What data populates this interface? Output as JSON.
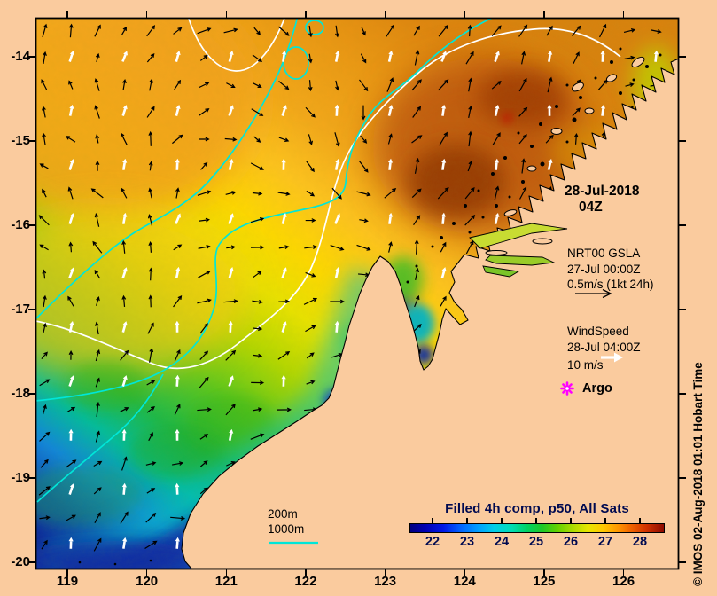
{
  "figure": {
    "bg_color": "#FACB9E",
    "frame_color": "#000000",
    "navy_label_color": "#000A50",
    "contour_white": "#FFFFFF",
    "contour_cyan": "#00E6D8",
    "credit": "© IMOS 02-Aug-2018 01:01 Hobart Time"
  },
  "axes": {
    "x_tick_labels": [
      "119",
      "120",
      "121",
      "122",
      "123",
      "124",
      "125",
      "126"
    ],
    "y_tick_labels": [
      "-14",
      "-15",
      "-16",
      "-17",
      "-18",
      "-19",
      "-20"
    ]
  },
  "annotations": {
    "datetime": {
      "line1": "28-Jul-2018",
      "line2": "04Z"
    },
    "gsla": {
      "line1": "NRT00 GSLA",
      "line2": "27-Jul 00:00Z",
      "line3": "0.5m/s (1kt 24h)"
    },
    "wind": {
      "line1": "WindSpeed",
      "line2": "28-Jul 04:00Z",
      "line3": "10 m/s"
    },
    "argo": {
      "label": "Argo",
      "marker_color": "#FF00FF"
    },
    "depth_legend": {
      "line1": "200m",
      "line2": "1000m",
      "line_color": "#00E6D8"
    }
  },
  "colorbar": {
    "title": "Filled 4h comp, p50, All Sats",
    "tick_labels": [
      "22",
      "23",
      "24",
      "25",
      "26",
      "27",
      "28"
    ],
    "stops": [
      [
        0,
        "#000080"
      ],
      [
        0.06,
        "#0000B4"
      ],
      [
        0.13,
        "#0018E6"
      ],
      [
        0.2,
        "#0064FF"
      ],
      [
        0.27,
        "#00A0FF"
      ],
      [
        0.33,
        "#00CDE8"
      ],
      [
        0.4,
        "#00DCB4"
      ],
      [
        0.46,
        "#00D264"
      ],
      [
        0.52,
        "#1EC828"
      ],
      [
        0.58,
        "#64D200"
      ],
      [
        0.64,
        "#AADC00"
      ],
      [
        0.7,
        "#E6E600"
      ],
      [
        0.76,
        "#FFC800"
      ],
      [
        0.82,
        "#FF9600"
      ],
      [
        0.87,
        "#F06400"
      ],
      [
        0.93,
        "#D23200"
      ],
      [
        1,
        "#8C0A00"
      ]
    ]
  },
  "chart_data": {
    "type": "heatmap",
    "title": "Filled 4h comp, p50, All Sats",
    "colorbar_ticks": [
      22,
      23,
      24,
      25,
      26,
      27,
      28
    ],
    "lon_ticks": [
      119,
      120,
      121,
      122,
      123,
      124,
      125,
      126
    ],
    "lat_ticks": [
      -14,
      -15,
      -16,
      -17,
      -18,
      -19,
      -20
    ],
    "lon_range": [
      118.6,
      126.7
    ],
    "lat_range": [
      -20.1,
      -13.5
    ],
    "overlays": [
      {
        "name": "NRT00 GSLA current vectors",
        "reference": "0.5m/s (1kt 24h)",
        "valid": "27-Jul 00:00Z",
        "color": "black"
      },
      {
        "name": "WindSpeed vectors",
        "reference": "10 m/s",
        "valid": "28-Jul 04:00Z",
        "color": "white"
      },
      {
        "name": "Bathymetry contours",
        "levels": [
          "200m",
          "1000m"
        ],
        "color": "cyan"
      },
      {
        "name": "Argo float",
        "color": "magenta"
      }
    ],
    "valid_time": "28-Jul-2018 04Z"
  }
}
